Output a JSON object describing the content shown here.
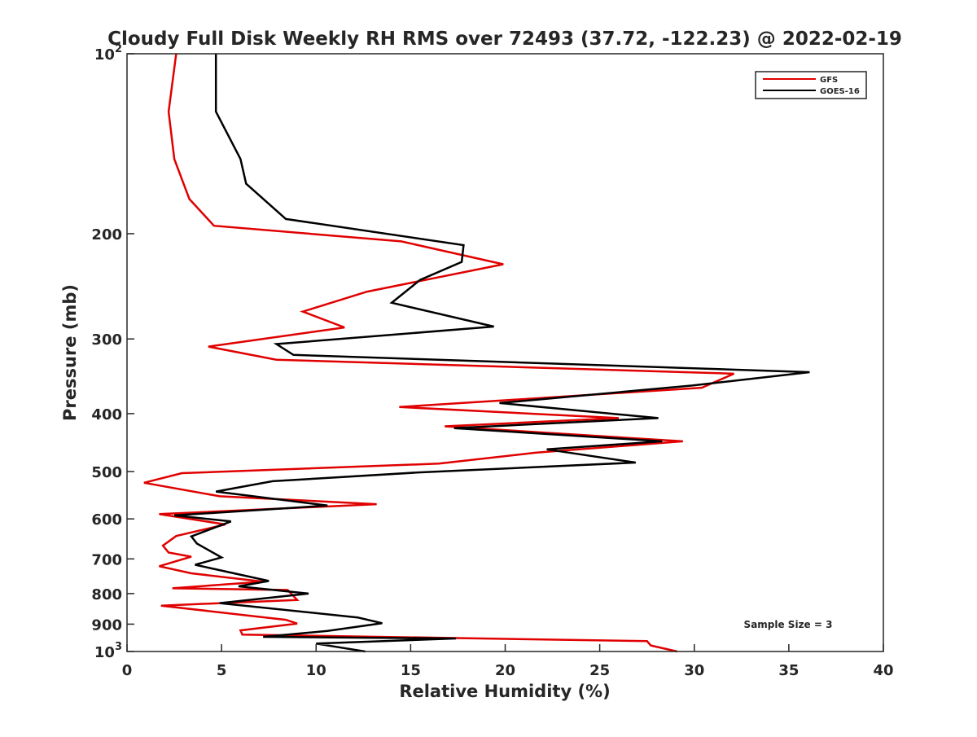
{
  "chart_data": {
    "type": "line",
    "title": "Cloudy Full Disk Weekly RH RMS over 72493 (37.72, -122.23) @ 2022-02-19",
    "xlabel": "Relative Humidity (%)",
    "ylabel": "Pressure (mb)",
    "xlim": [
      0,
      40
    ],
    "ylim": [
      100,
      1000
    ],
    "yscale": "log",
    "y_reversed": true,
    "grid": false,
    "legend_position": "top-right",
    "x_ticks": [
      "0",
      "5",
      "10",
      "15",
      "20",
      "25",
      "30",
      "35",
      "40"
    ],
    "y_ticks": [
      {
        "value": 100,
        "base": "10",
        "exp": "2"
      },
      {
        "value": 200,
        "label": "200"
      },
      {
        "value": 300,
        "label": "300"
      },
      {
        "value": 400,
        "label": "400"
      },
      {
        "value": 500,
        "label": "500"
      },
      {
        "value": 600,
        "label": "600"
      },
      {
        "value": 700,
        "label": "700"
      },
      {
        "value": 800,
        "label": "800"
      },
      {
        "value": 900,
        "label": "900"
      },
      {
        "value": 1000,
        "base": "10",
        "exp": "3"
      }
    ],
    "annotation": "Sample Size = 3",
    "series": [
      {
        "name": "GFS",
        "color": "#e00000",
        "points": [
          [
            2.6,
            100
          ],
          [
            2.2,
            125
          ],
          [
            2.5,
            150
          ],
          [
            3.3,
            175
          ],
          [
            4.6,
            194
          ],
          [
            14.5,
            206
          ],
          [
            19.9,
            225
          ],
          [
            12.7,
            250
          ],
          [
            9.3,
            270
          ],
          [
            11.5,
            287
          ],
          [
            4.3,
            309
          ],
          [
            7.9,
            325
          ],
          [
            32.1,
            343
          ],
          [
            30.4,
            362
          ],
          [
            14.4,
            390
          ],
          [
            26.0,
            407
          ],
          [
            16.8,
            420
          ],
          [
            29.4,
            445
          ],
          [
            21.6,
            465
          ],
          [
            16.5,
            485
          ],
          [
            2.9,
            503
          ],
          [
            0.9,
            522
          ],
          [
            4.9,
            550
          ],
          [
            13.2,
            567
          ],
          [
            1.7,
            589
          ],
          [
            5.2,
            613
          ],
          [
            2.6,
            641
          ],
          [
            1.9,
            665
          ],
          [
            2.2,
            683
          ],
          [
            3.4,
            694
          ],
          [
            1.7,
            720
          ],
          [
            3.4,
            740
          ],
          [
            7.2,
            764
          ],
          [
            2.4,
            784
          ],
          [
            8.5,
            789
          ],
          [
            9.0,
            820
          ],
          [
            1.8,
            838
          ],
          [
            8.4,
            885
          ],
          [
            9.0,
            898
          ],
          [
            6.0,
            922
          ],
          [
            6.1,
            937
          ],
          [
            27.5,
            961
          ],
          [
            27.7,
            977
          ],
          [
            29.1,
            1000
          ]
        ]
      },
      {
        "name": "GOES-16",
        "color": "#000000",
        "points": [
          [
            4.7,
            100
          ],
          [
            4.7,
            125
          ],
          [
            6.0,
            150
          ],
          [
            6.3,
            165
          ],
          [
            8.4,
            189
          ],
          [
            17.8,
            209
          ],
          [
            17.7,
            223
          ],
          [
            15.5,
            239
          ],
          [
            14.0,
            261
          ],
          [
            19.4,
            286
          ],
          [
            7.9,
            306
          ],
          [
            8.8,
            319
          ],
          [
            36.1,
            341
          ],
          [
            29.9,
            359
          ],
          [
            19.7,
            384
          ],
          [
            28.1,
            407
          ],
          [
            17.3,
            423
          ],
          [
            28.3,
            445
          ],
          [
            22.2,
            459
          ],
          [
            26.9,
            483
          ],
          [
            15.3,
            502
          ],
          [
            7.7,
            519
          ],
          [
            4.7,
            540
          ],
          [
            10.6,
            570
          ],
          [
            2.5,
            592
          ],
          [
            5.5,
            606
          ],
          [
            3.4,
            642
          ],
          [
            3.7,
            660
          ],
          [
            5.0,
            696
          ],
          [
            3.6,
            716
          ],
          [
            7.5,
            762
          ],
          [
            5.9,
            778
          ],
          [
            9.6,
            800
          ],
          [
            4.9,
            830
          ],
          [
            12.2,
            877
          ],
          [
            13.5,
            897
          ],
          [
            10.6,
            924
          ],
          [
            7.2,
            945
          ],
          [
            17.4,
            951
          ],
          [
            10.0,
            970
          ],
          [
            12.6,
            1000
          ]
        ]
      }
    ]
  }
}
